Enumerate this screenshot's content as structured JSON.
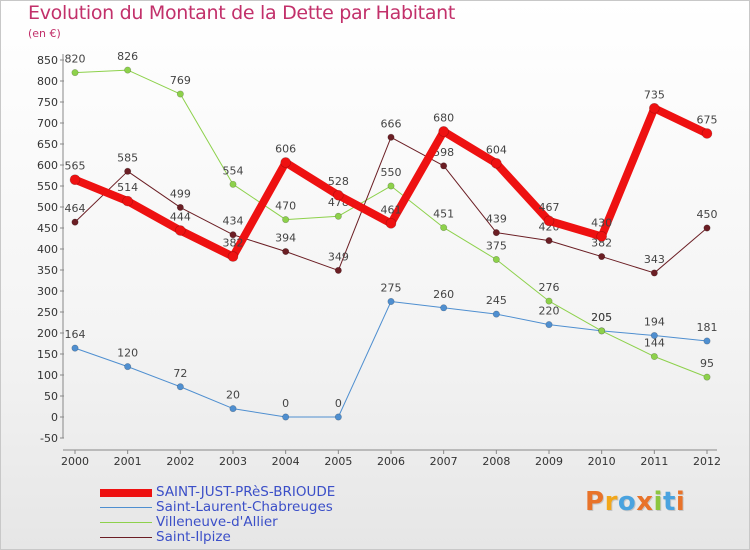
{
  "title": "Evolution du Montant de la Dette par Habitant",
  "unit": "(en €)",
  "logo": {
    "text": "Proxiti",
    "colors": [
      "#e8732a",
      "#f2a71b",
      "#4aa3df",
      "#e8732a",
      "#8cc63f",
      "#4aa3df",
      "#e8732a"
    ]
  },
  "chart_data": {
    "type": "line",
    "title": "Evolution du Montant de la Dette par Habitant",
    "ylabel": "(en €)",
    "xlabel": "",
    "ylim": [
      -50,
      850
    ],
    "yticks": [
      -50,
      0,
      50,
      100,
      150,
      200,
      250,
      300,
      350,
      400,
      450,
      500,
      550,
      600,
      650,
      700,
      750,
      800,
      850
    ],
    "x": [
      "2000",
      "2001",
      "2002",
      "2003",
      "2004",
      "2005",
      "2006",
      "2007",
      "2008",
      "2009",
      "2010",
      "2011",
      "2012"
    ],
    "grid": false,
    "legend": "bottom-left",
    "series": [
      {
        "name": "Saint-Laurent-Chabreuges",
        "color": "#4f8fd0",
        "width": 1,
        "values": [
          164,
          120,
          72,
          20,
          0,
          0,
          275,
          260,
          245,
          220,
          205,
          194,
          181
        ]
      },
      {
        "name": "Villeneuve-d'Allier",
        "color": "#8dd14b",
        "width": 1,
        "values": [
          820,
          826,
          769,
          554,
          470,
          478,
          550,
          451,
          375,
          276,
          205,
          144,
          95
        ]
      },
      {
        "name": "Saint-Ilpize",
        "color": "#6b1e24",
        "width": 1,
        "values": [
          464,
          585,
          499,
          434,
          394,
          349,
          666,
          598,
          439,
          420,
          382,
          343,
          450
        ]
      },
      {
        "name": "SAINT-JUST-PRèS-BRIOUDE",
        "color": "#ee1111",
        "width": 8,
        "values": [
          565,
          514,
          444,
          382,
          606,
          528,
          461,
          680,
          604,
          467,
          430,
          735,
          675
        ]
      }
    ],
    "legend_order": [
      "SAINT-JUST-PRèS-BRIOUDE",
      "Saint-Laurent-Chabreuges",
      "Villeneuve-d'Allier",
      "Saint-Ilpize"
    ]
  }
}
